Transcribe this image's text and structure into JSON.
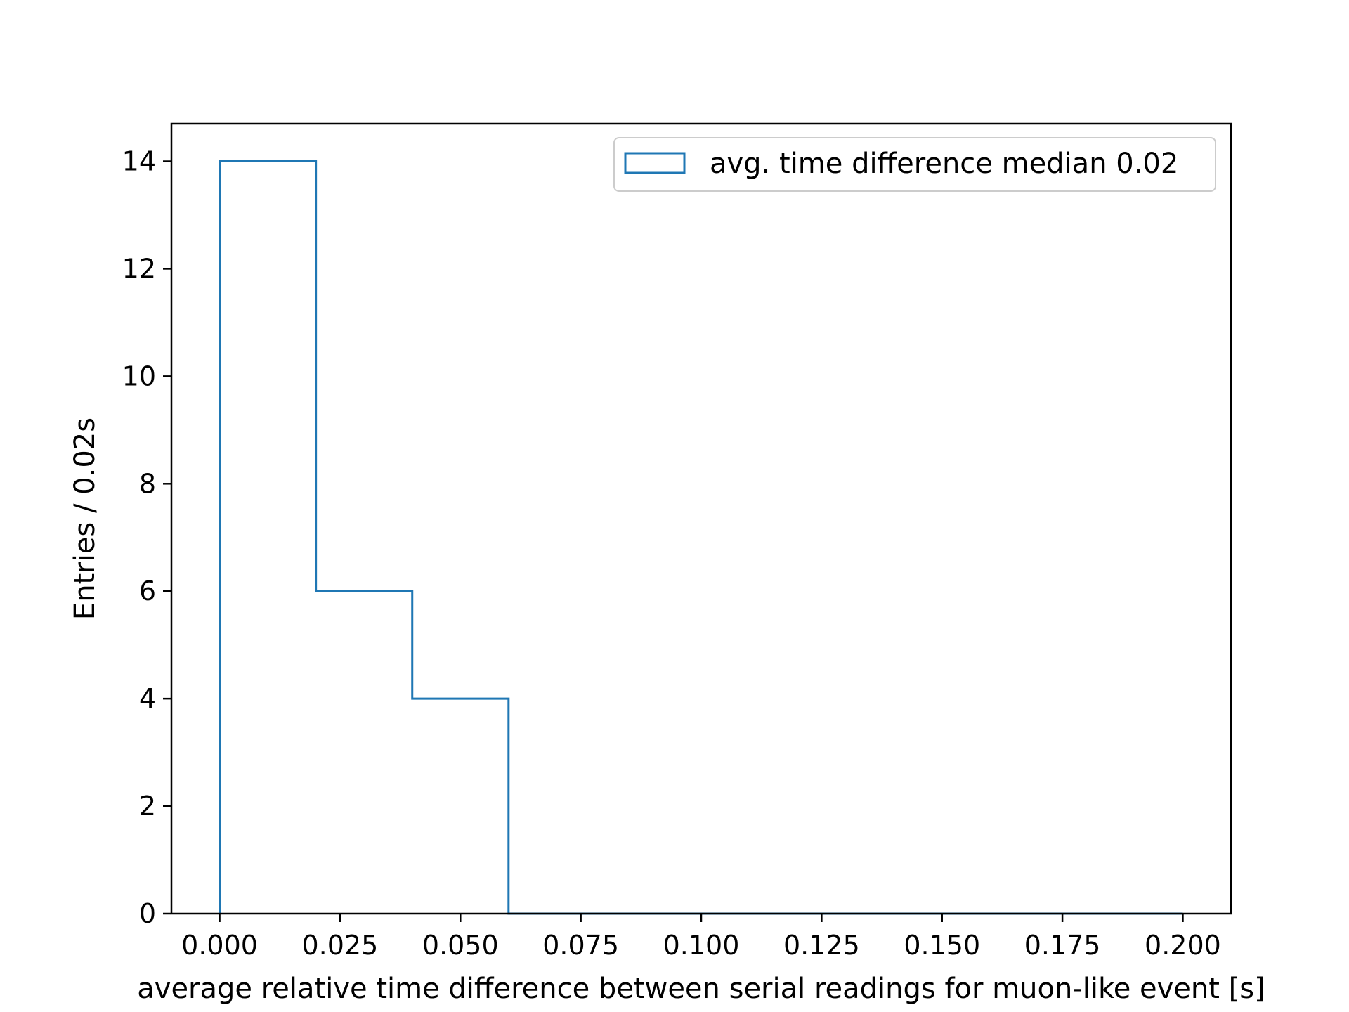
{
  "chart_data": {
    "type": "histogram",
    "bin_edges": [
      0.0,
      0.02,
      0.04,
      0.06,
      0.08,
      0.1,
      0.12,
      0.14,
      0.16,
      0.18,
      0.2
    ],
    "counts": [
      14,
      6,
      4,
      0,
      0,
      0,
      0,
      0,
      0,
      0
    ],
    "series": [
      {
        "name": "avg. time difference median 0.02",
        "color": "#1f77b4"
      }
    ],
    "xlabel": "average relative time difference between serial readings for muon-like event [s]",
    "ylabel": "Entries / 0.02s",
    "xlim": [
      -0.01,
      0.21
    ],
    "ylim": [
      0,
      14.7
    ],
    "xticks": [
      0.0,
      0.025,
      0.05,
      0.075,
      0.1,
      0.125,
      0.15,
      0.175,
      0.2
    ],
    "xtick_labels": [
      "0.000",
      "0.025",
      "0.050",
      "0.075",
      "0.100",
      "0.125",
      "0.150",
      "0.175",
      "0.200"
    ],
    "yticks": [
      0,
      2,
      4,
      6,
      8,
      10,
      12,
      14
    ],
    "ytick_labels": [
      "0",
      "2",
      "4",
      "6",
      "8",
      "10",
      "12",
      "14"
    ],
    "grid": false,
    "legend_position": "top-right"
  }
}
